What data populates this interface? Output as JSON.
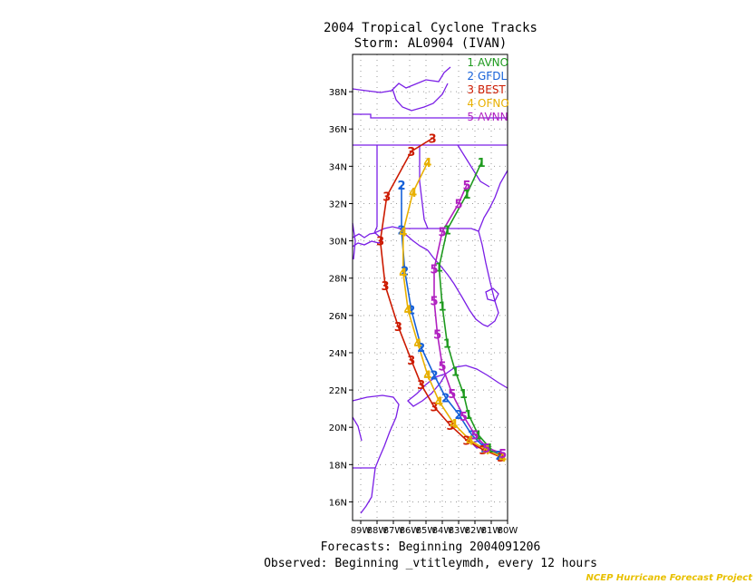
{
  "chart_data": {
    "type": "line",
    "title": "2004 Tropical Cyclone Tracks",
    "subtitle": "Storm: AL0904 (IVAN)",
    "footer_line1": "Forecasts: Beginning 2004091206",
    "footer_line2": "Observed: Beginning _vtitleymdh, every 12 hours",
    "credit": "NCEP Hurricane Forecast Project",
    "xlim": [
      -89.5,
      -80.0
    ],
    "ylim": [
      15.0,
      40.0
    ],
    "x_ticks": [
      {
        "value": -89,
        "label": "89W"
      },
      {
        "value": -88,
        "label": "88W"
      },
      {
        "value": -87,
        "label": "87W"
      },
      {
        "value": -86,
        "label": "86W"
      },
      {
        "value": -85,
        "label": "85W"
      },
      {
        "value": -84,
        "label": "84W"
      },
      {
        "value": -83,
        "label": "83W"
      },
      {
        "value": -82,
        "label": "82W"
      },
      {
        "value": -81,
        "label": "81W"
      },
      {
        "value": -80,
        "label": "80W"
      }
    ],
    "y_ticks": [
      {
        "value": 16,
        "label": "16N"
      },
      {
        "value": 18,
        "label": "18N"
      },
      {
        "value": 20,
        "label": "20N"
      },
      {
        "value": 22,
        "label": "22N"
      },
      {
        "value": 24,
        "label": "24N"
      },
      {
        "value": 26,
        "label": "26N"
      },
      {
        "value": 28,
        "label": "28N"
      },
      {
        "value": 30,
        "label": "30N"
      },
      {
        "value": 32,
        "label": "32N"
      },
      {
        "value": 34,
        "label": "34N"
      },
      {
        "value": 36,
        "label": "36N"
      },
      {
        "value": 38,
        "label": "38N"
      }
    ],
    "grid": true,
    "legend_position": "top-right",
    "series": [
      {
        "marker": "1",
        "name": "AVNO",
        "color": "#1e9a1e",
        "points": [
          [
            -80.5,
            18.5
          ],
          [
            -81.1,
            18.9
          ],
          [
            -81.8,
            19.6
          ],
          [
            -82.4,
            20.7
          ],
          [
            -82.7,
            21.8
          ],
          [
            -83.2,
            23.0
          ],
          [
            -83.7,
            24.5
          ],
          [
            -84.0,
            26.5
          ],
          [
            -84.2,
            28.6
          ],
          [
            -83.7,
            30.6
          ],
          [
            -82.5,
            32.5
          ],
          [
            -81.6,
            34.2
          ]
        ]
      },
      {
        "marker": "2",
        "name": "GFDL",
        "color": "#1560d8",
        "points": [
          [
            -80.5,
            18.5
          ],
          [
            -81.4,
            18.9
          ],
          [
            -82.2,
            19.6
          ],
          [
            -83.0,
            20.7
          ],
          [
            -83.8,
            21.6
          ],
          [
            -84.5,
            22.8
          ],
          [
            -85.3,
            24.3
          ],
          [
            -85.9,
            26.3
          ],
          [
            -86.3,
            28.4
          ],
          [
            -86.5,
            30.6
          ],
          [
            -86.5,
            33.0
          ]
        ]
      },
      {
        "marker": "3",
        "name": "BEST",
        "color": "#cc1a00",
        "points": [
          [
            -80.4,
            18.4
          ],
          [
            -81.5,
            18.8
          ],
          [
            -82.5,
            19.3
          ],
          [
            -83.5,
            20.1
          ],
          [
            -84.5,
            21.1
          ],
          [
            -85.3,
            22.3
          ],
          [
            -85.9,
            23.6
          ],
          [
            -86.7,
            25.4
          ],
          [
            -87.5,
            27.6
          ],
          [
            -87.8,
            30.0
          ],
          [
            -87.4,
            32.4
          ],
          [
            -85.9,
            34.8
          ],
          [
            -84.6,
            35.5
          ]
        ]
      },
      {
        "marker": "4",
        "name": "OFNO",
        "color": "#e8b000",
        "points": [
          [
            -80.3,
            18.4
          ],
          [
            -81.3,
            18.8
          ],
          [
            -82.3,
            19.3
          ],
          [
            -83.3,
            20.2
          ],
          [
            -84.2,
            21.4
          ],
          [
            -84.9,
            22.8
          ],
          [
            -85.5,
            24.5
          ],
          [
            -86.1,
            26.3
          ],
          [
            -86.4,
            28.3
          ],
          [
            -86.4,
            30.5
          ],
          [
            -85.8,
            32.6
          ],
          [
            -84.9,
            34.2
          ]
        ]
      },
      {
        "marker": "5",
        "name": "AVNN",
        "color": "#b020c0",
        "points": [
          [
            -80.3,
            18.6
          ],
          [
            -81.3,
            18.9
          ],
          [
            -82.0,
            19.6
          ],
          [
            -82.7,
            20.6
          ],
          [
            -83.4,
            21.8
          ],
          [
            -84.0,
            23.3
          ],
          [
            -84.3,
            25.0
          ],
          [
            -84.5,
            26.8
          ],
          [
            -84.5,
            28.5
          ],
          [
            -84.0,
            30.5
          ],
          [
            -83.0,
            32.0
          ],
          [
            -82.5,
            33.0
          ]
        ]
      }
    ]
  },
  "colors": {
    "map_lines": "#7a1ee6",
    "border": "#000000",
    "grid": "#999999",
    "credit": "#e8c000"
  }
}
